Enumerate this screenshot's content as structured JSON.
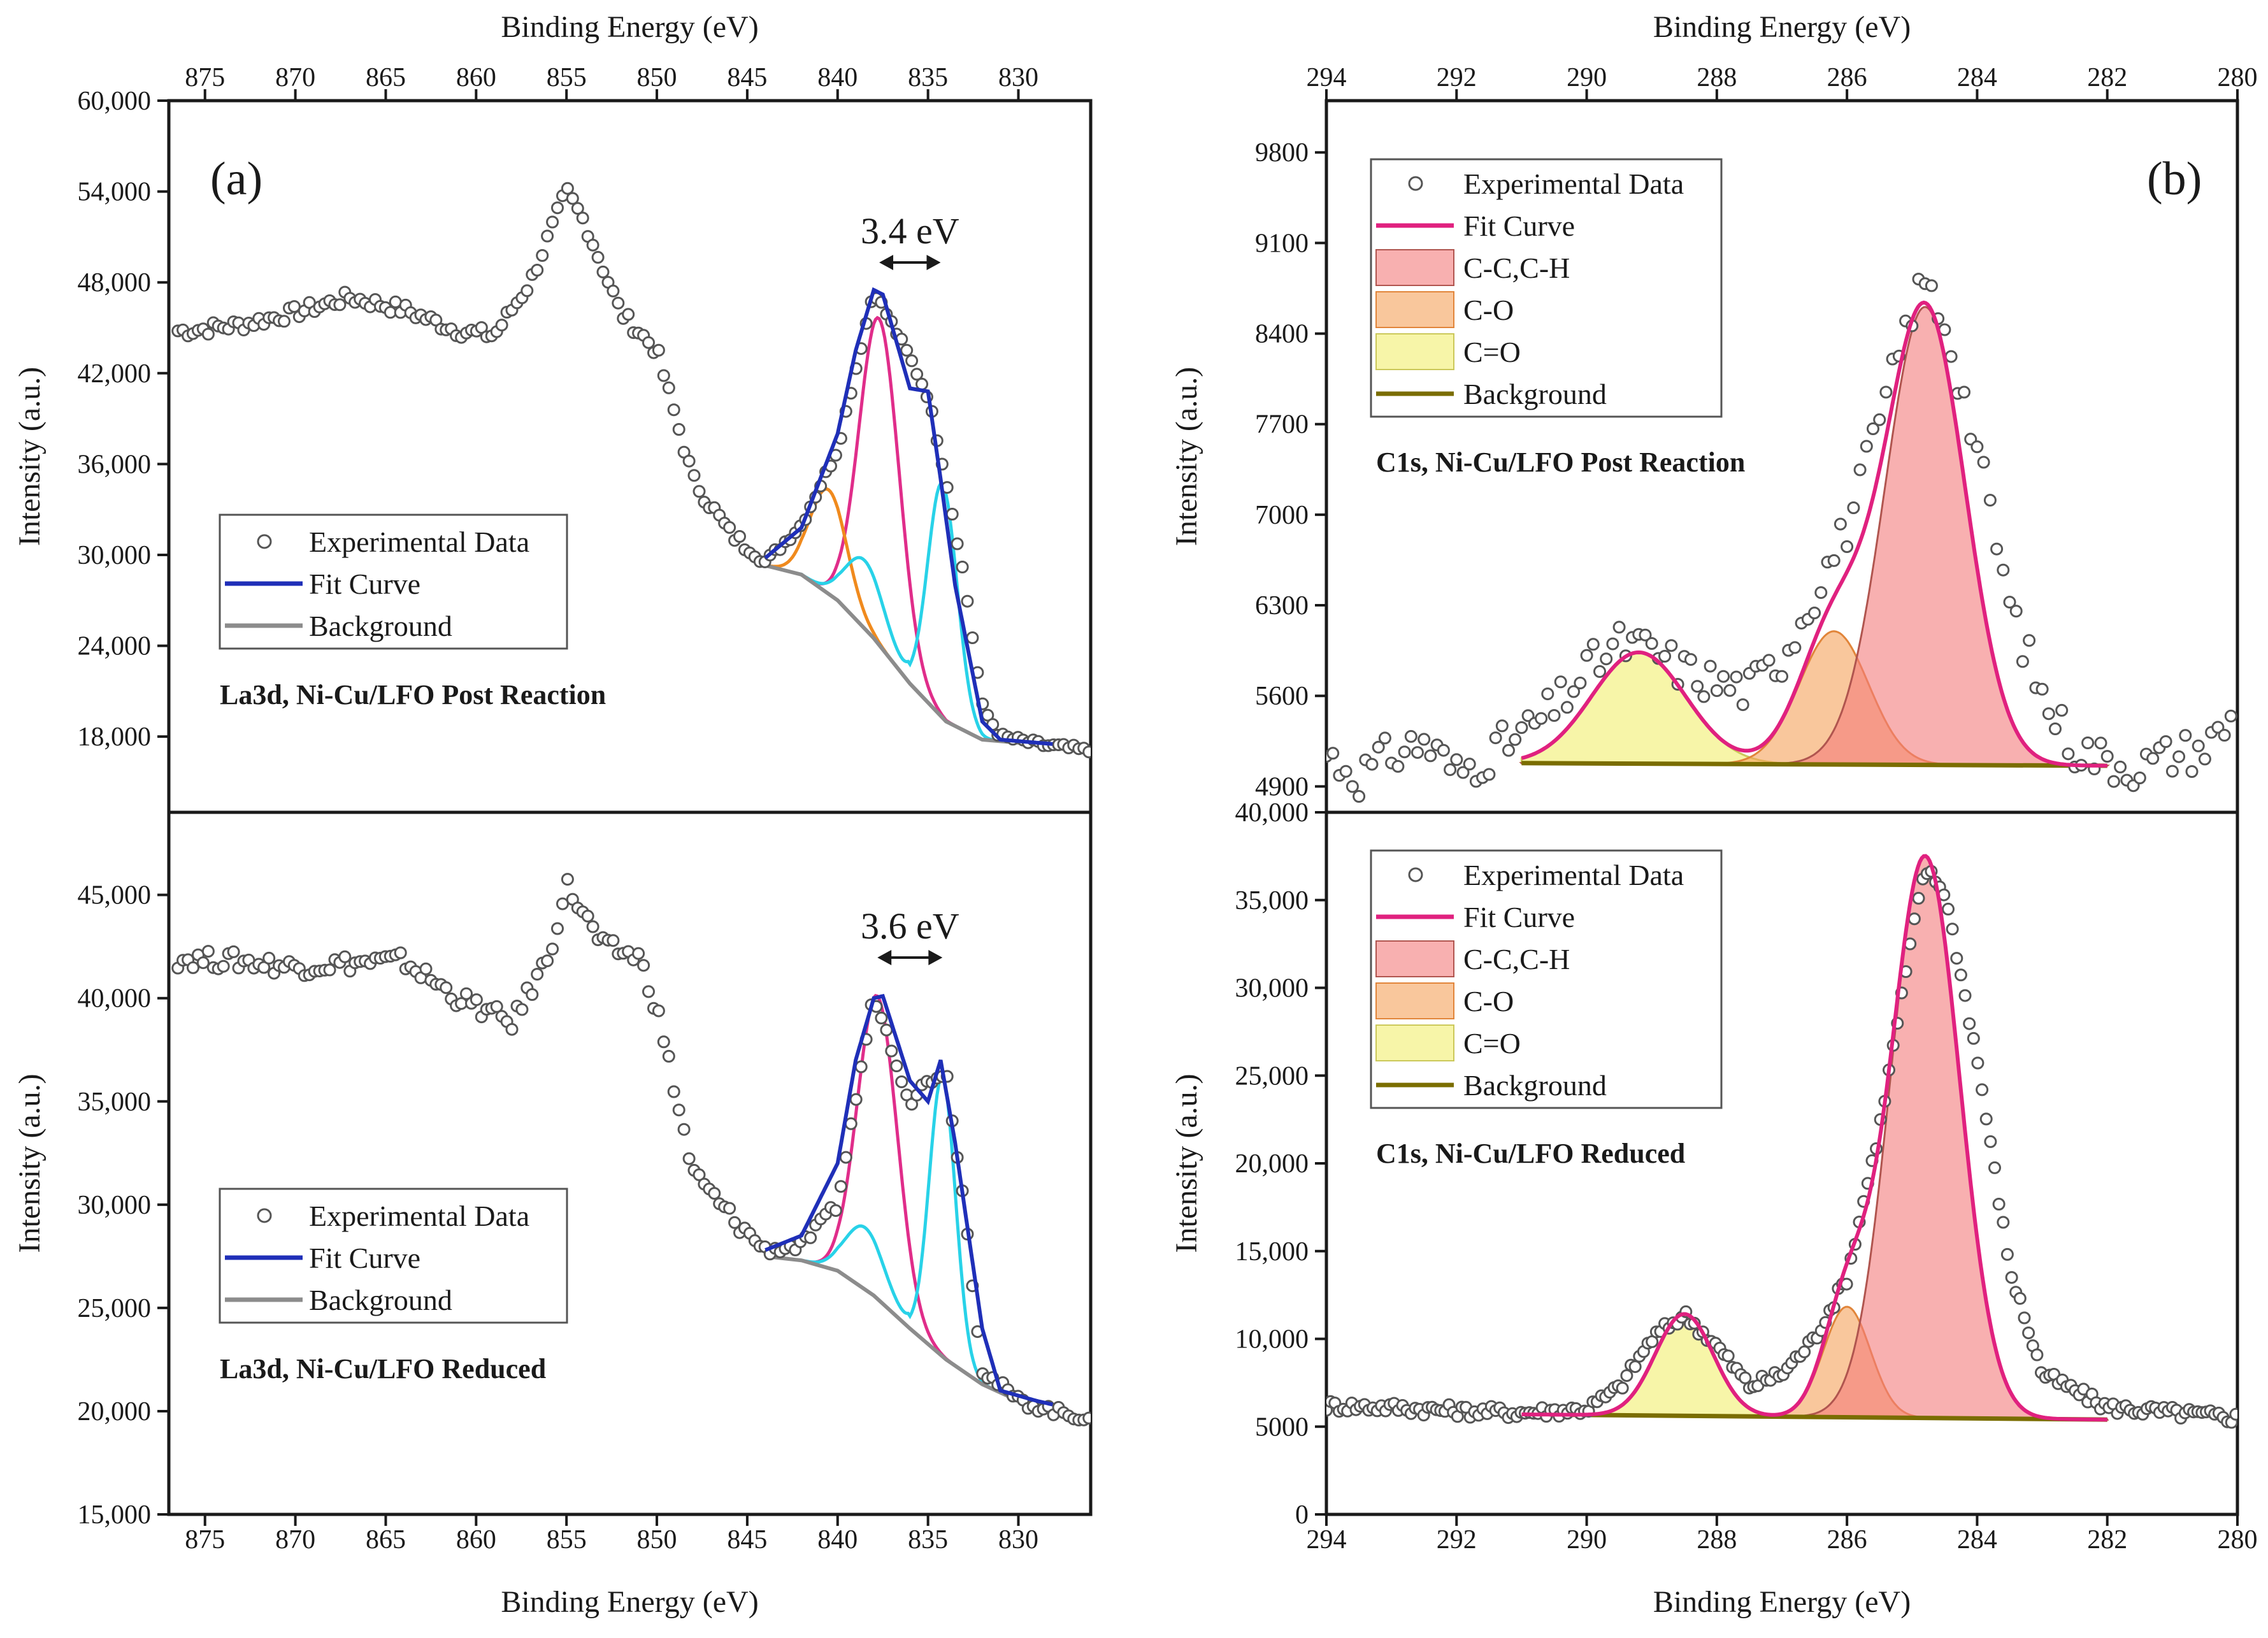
{
  "figure": {
    "panels": [
      {
        "id": "a",
        "panel_label": "(a)",
        "x_axis_title": "Binding Energy (eV)",
        "x_range": [
          877,
          826
        ],
        "x_ticks": [
          875,
          870,
          865,
          860,
          855,
          850,
          845,
          840,
          835,
          830
        ],
        "subplots": [
          {
            "sample_label": "La3d, Ni-Cu/LFO Post Reaction",
            "y_axis_title": "Intensity (a.u.)",
            "y_range": [
              13000,
              60000
            ],
            "y_ticks": [
              "18,000",
              "24,000",
              "30,000",
              "36,000",
              "42,000",
              "48,000",
              "54,000",
              "60,000"
            ],
            "y_tick_values": [
              18000,
              24000,
              30000,
              36000,
              42000,
              48000,
              54000,
              60000
            ],
            "splitting_annotation": "3.4 eV",
            "splitting_between": [
              837.7,
              834.3
            ],
            "legend": [
              "Experimental Data",
              "Fit Curve",
              "Background"
            ]
          },
          {
            "sample_label": "La3d, Ni-Cu/LFO Reduced",
            "y_axis_title": "Intensity (a.u.)",
            "y_range": [
              15000,
              49000
            ],
            "y_ticks": [
              "15,000",
              "20,000",
              "25,000",
              "30,000",
              "35,000",
              "40,000",
              "45,000"
            ],
            "y_tick_values": [
              15000,
              20000,
              25000,
              30000,
              35000,
              40000,
              45000
            ],
            "splitting_annotation": "3.6 eV",
            "splitting_between": [
              837.8,
              834.2
            ],
            "legend": [
              "Experimental Data",
              "Fit Curve",
              "Background"
            ]
          }
        ]
      },
      {
        "id": "b",
        "panel_label": "(b)",
        "x_axis_title": "Binding Energy (eV)",
        "x_range": [
          294,
          280
        ],
        "x_ticks": [
          294,
          292,
          290,
          288,
          286,
          284,
          282,
          280
        ],
        "subplots": [
          {
            "sample_label": "C1s, Ni-Cu/LFO Post Reaction",
            "y_axis_title": "Intensity (a.u.)",
            "y_range": [
              4700,
              10200
            ],
            "y_ticks": [
              "4900",
              "5600",
              "6300",
              "7000",
              "7700",
              "8400",
              "9100",
              "9800"
            ],
            "y_tick_values": [
              4900,
              5600,
              6300,
              7000,
              7700,
              8400,
              9100,
              9800
            ],
            "legend": [
              "Experimental Data",
              "Fit Curve",
              "C-C,C-H",
              "C-O",
              "C=O",
              "Background"
            ]
          },
          {
            "sample_label": "C1s, Ni-Cu/LFO Reduced",
            "y_axis_title": "Intensity (a.u.)",
            "y_range": [
              0,
              40000
            ],
            "y_ticks": [
              "0",
              "5000",
              "10,000",
              "15,000",
              "20,000",
              "25,000",
              "30,000",
              "35,000",
              "40,000"
            ],
            "y_tick_values": [
              0,
              5000,
              10000,
              15000,
              20000,
              25000,
              30000,
              35000,
              40000
            ],
            "legend": [
              "Experimental Data",
              "Fit Curve",
              "C-C,C-H",
              "C-O",
              "C=O",
              "Background"
            ]
          }
        ]
      }
    ]
  },
  "chart_data": [
    {
      "type": "line",
      "title": "La3d, Ni-Cu/LFO Post Reaction",
      "xlabel": "Binding Energy (eV)",
      "ylabel": "Intensity (a.u.)",
      "xlim": [
        877,
        826
      ],
      "ylim": [
        13000,
        60000
      ],
      "series": [
        {
          "name": "Experimental Data",
          "x": [
            876,
            873,
            870,
            867,
            864,
            861,
            859,
            857,
            855,
            854,
            852,
            850,
            848,
            846,
            844,
            842,
            840,
            838,
            836,
            835,
            834,
            833,
            832,
            831,
            829,
            827,
            826
          ],
          "y": [
            44800,
            45200,
            46000,
            47000,
            46200,
            44800,
            44500,
            48000,
            54000,
            52000,
            46000,
            43500,
            35000,
            31500,
            29500,
            32000,
            37000,
            47500,
            43000,
            40500,
            35000,
            28500,
            20000,
            18000,
            17500,
            17200,
            17000
          ]
        },
        {
          "name": "Fit Curve",
          "x": [
            844,
            842,
            840,
            839,
            838,
            837.5,
            836,
            835,
            834.3,
            833.5,
            832,
            831,
            829,
            828
          ],
          "y": [
            29800,
            31800,
            38000,
            43500,
            47500,
            47200,
            41000,
            40800,
            35000,
            28000,
            19000,
            17800,
            17600,
            17500
          ]
        },
        {
          "name": "Background",
          "x": [
            844,
            842,
            840,
            838,
            836,
            834,
            832,
            830,
            828
          ],
          "y": [
            29300,
            28700,
            27000,
            24500,
            21500,
            19000,
            17800,
            17600,
            17500
          ]
        }
      ],
      "annotations": [
        "3.4 eV"
      ]
    },
    {
      "type": "line",
      "title": "La3d, Ni-Cu/LFO Reduced",
      "xlabel": "Binding Energy (eV)",
      "ylabel": "Intensity (a.u.)",
      "xlim": [
        877,
        826
      ],
      "ylim": [
        15000,
        49000
      ],
      "series": [
        {
          "name": "Experimental Data",
          "x": [
            876,
            873,
            870,
            867,
            864,
            861,
            858,
            856,
            855,
            853,
            851,
            850,
            848,
            846,
            844,
            842,
            840,
            838,
            836,
            835,
            834,
            833,
            832,
            830,
            828,
            827,
            826
          ],
          "y": [
            41900,
            41800,
            41500,
            41700,
            41800,
            40000,
            38800,
            42000,
            45500,
            42500,
            42000,
            39500,
            31500,
            29500,
            27800,
            28000,
            30000,
            40200,
            35000,
            36000,
            36500,
            30000,
            22000,
            20500,
            20000,
            19800,
            19700
          ]
        },
        {
          "name": "Fit Curve",
          "x": [
            844,
            842,
            840,
            839,
            838,
            837.5,
            836,
            835,
            834.3,
            833.5,
            832,
            831,
            829,
            828
          ],
          "y": [
            27800,
            28500,
            32000,
            37000,
            40000,
            40100,
            36000,
            35000,
            37000,
            33000,
            24000,
            21000,
            20500,
            20300
          ]
        },
        {
          "name": "Background",
          "x": [
            844,
            842,
            840,
            838,
            836,
            834,
            832,
            830,
            828
          ],
          "y": [
            27500,
            27300,
            26800,
            25600,
            24000,
            22500,
            21300,
            20500,
            20200
          ]
        }
      ],
      "annotations": [
        "3.6 eV"
      ]
    },
    {
      "type": "area",
      "title": "C1s, Ni-Cu/LFO Post Reaction",
      "xlabel": "Binding Energy (eV)",
      "ylabel": "Intensity (a.u.)",
      "xlim": [
        294,
        280
      ],
      "ylim": [
        4700,
        10200
      ],
      "components": [
        {
          "name": "C-C,C-H",
          "center": 284.8,
          "amplitude": 3540,
          "fwhm": 1.45
        },
        {
          "name": "C-O",
          "center": 286.2,
          "amplitude": 1030,
          "fwhm": 1.25
        },
        {
          "name": "C=O",
          "center": 289.2,
          "amplitude": 860,
          "fwhm": 1.7
        }
      ],
      "background": {
        "x": [
          291,
          282
        ],
        "y": [
          5080,
          5060
        ]
      },
      "fit_peak": {
        "x": 284.8,
        "y": 8800
      },
      "experimental_points": {
        "x": [
          294,
          293.5,
          293,
          292.5,
          292,
          291.5,
          291,
          290.5,
          290,
          289.5,
          289,
          288.5,
          288,
          287.5,
          287,
          286.5,
          286,
          285.5,
          285,
          284.8,
          284.5,
          284,
          283.5,
          283,
          282.5,
          282,
          281.5,
          281,
          280.5,
          280
        ],
        "y": [
          5150,
          4980,
          5150,
          5250,
          5000,
          5150,
          5300,
          5500,
          5800,
          6000,
          5950,
          5800,
          5700,
          5650,
          5900,
          6400,
          6900,
          7700,
          8600,
          8800,
          8500,
          7500,
          6300,
          5600,
          5200,
          5100,
          5050,
          5150,
          5200,
          5450
        ]
      }
    },
    {
      "type": "area",
      "title": "C1s, Ni-Cu/LFO Reduced",
      "xlabel": "Binding Energy (eV)",
      "ylabel": "Intensity (a.u.)",
      "xlim": [
        294,
        280
      ],
      "ylim": [
        0,
        40000
      ],
      "components": [
        {
          "name": "C-C,C-H",
          "center": 284.8,
          "amplitude": 32000,
          "fwhm": 1.25
        },
        {
          "name": "C-O",
          "center": 286.0,
          "amplitude": 6300,
          "fwhm": 0.85
        },
        {
          "name": "C=O",
          "center": 288.5,
          "amplitude": 5800,
          "fwhm": 1.05
        }
      ],
      "background": {
        "x": [
          291,
          282
        ],
        "y": [
          5700,
          5400
        ]
      },
      "fit_peak": {
        "x": 284.8,
        "y": 37500
      },
      "experimental_points": {
        "x": [
          294,
          293,
          292,
          291,
          290,
          289.5,
          289,
          288.5,
          288,
          287.5,
          287,
          286.5,
          286,
          285.5,
          285,
          284.8,
          284.5,
          284,
          283.5,
          283,
          282,
          281,
          280
        ],
        "y": [
          6200,
          6100,
          5900,
          5800,
          6000,
          7200,
          10000,
          11400,
          9600,
          7300,
          8000,
          10000,
          13500,
          22000,
          33000,
          36800,
          35500,
          26000,
          14000,
          8000,
          6100,
          5800,
          5500
        ]
      }
    }
  ]
}
